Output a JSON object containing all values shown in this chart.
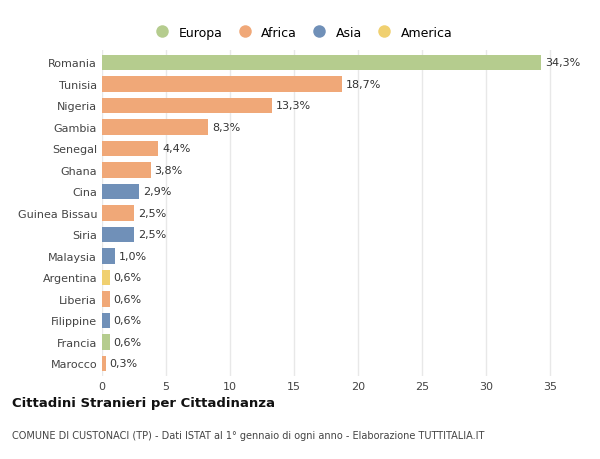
{
  "countries": [
    "Romania",
    "Tunisia",
    "Nigeria",
    "Gambia",
    "Senegal",
    "Ghana",
    "Cina",
    "Guinea Bissau",
    "Siria",
    "Malaysia",
    "Argentina",
    "Liberia",
    "Filippine",
    "Francia",
    "Marocco"
  ],
  "values": [
    34.3,
    18.7,
    13.3,
    8.3,
    4.4,
    3.8,
    2.9,
    2.5,
    2.5,
    1.0,
    0.6,
    0.6,
    0.6,
    0.6,
    0.3
  ],
  "labels": [
    "34,3%",
    "18,7%",
    "13,3%",
    "8,3%",
    "4,4%",
    "3,8%",
    "2,9%",
    "2,5%",
    "2,5%",
    "1,0%",
    "0,6%",
    "0,6%",
    "0,6%",
    "0,6%",
    "0,3%"
  ],
  "colors": [
    "#b5cc8e",
    "#f0a878",
    "#f0a878",
    "#f0a878",
    "#f0a878",
    "#f0a878",
    "#7090b8",
    "#f0a878",
    "#7090b8",
    "#7090b8",
    "#f0d070",
    "#f0a878",
    "#7090b8",
    "#b5cc8e",
    "#f0a878"
  ],
  "legend_labels": [
    "Europa",
    "Africa",
    "Asia",
    "America"
  ],
  "legend_colors": [
    "#b5cc8e",
    "#f0a878",
    "#7090b8",
    "#f0d070"
  ],
  "title": "Cittadini Stranieri per Cittadinanza",
  "subtitle": "COMUNE DI CUSTONACI (TP) - Dati ISTAT al 1° gennaio di ogni anno - Elaborazione TUTTITALIA.IT",
  "xlim": [
    0,
    37
  ],
  "xticks": [
    0,
    5,
    10,
    15,
    20,
    25,
    30,
    35
  ],
  "bg_color": "#ffffff",
  "bar_height": 0.72,
  "grid_color": "#e8e8e8",
  "label_fontsize": 8,
  "tick_fontsize": 8,
  "legend_fontsize": 9
}
